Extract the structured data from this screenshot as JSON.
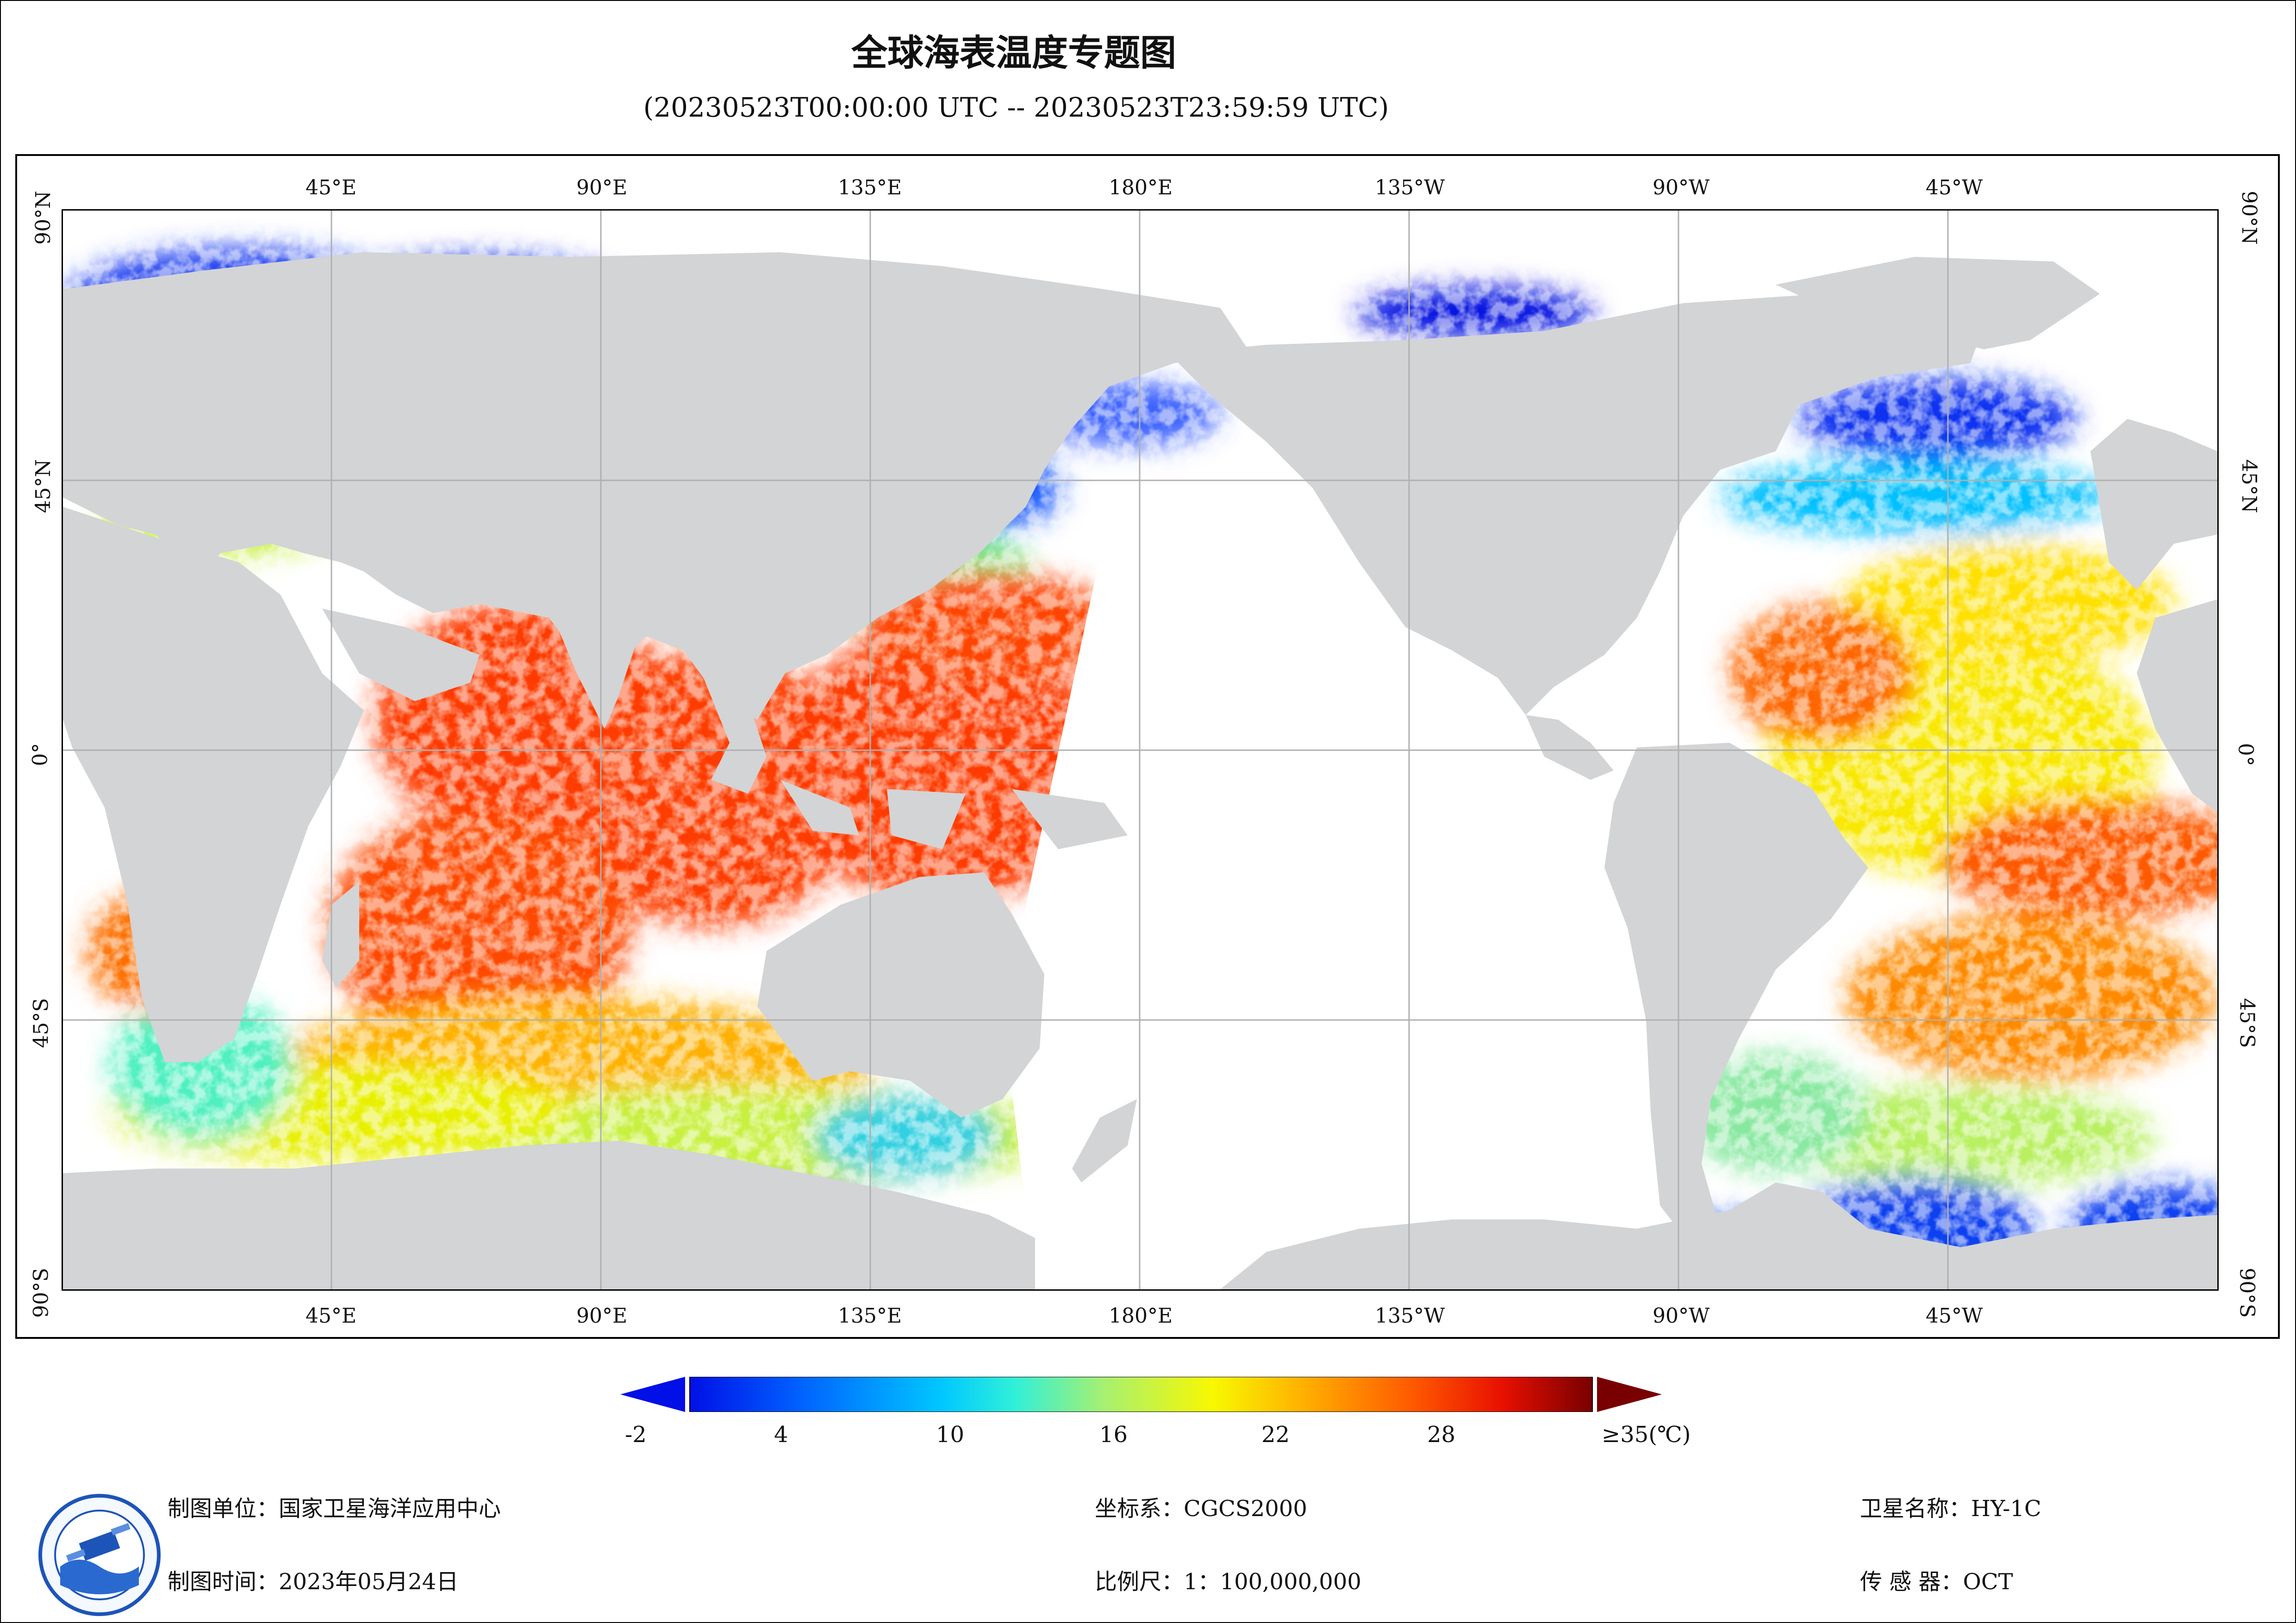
{
  "map": {
    "title": "全球海表温度专题图",
    "time_range": "(20230523T00:00:00 UTC -- 20230523T23:59:59 UTC)",
    "longitude_labels": [
      "45°E",
      "90°E",
      "135°E",
      "180°E",
      "135°W",
      "90°W",
      "45°W"
    ],
    "latitude_labels": [
      "90°N",
      "45°N",
      "0°",
      "45°S",
      "90°S"
    ],
    "colors": {
      "land": "#d3d4d6",
      "missing": "#ffffff",
      "grid": "#b0b0b0"
    }
  },
  "colorbar": {
    "ticks": [
      "-2",
      "4",
      "10",
      "16",
      "22",
      "28"
    ],
    "max_label": "≥35(℃)",
    "min_value": -2,
    "max_value": 35,
    "unit": "℃",
    "colors": [
      "#0010e6",
      "#0060ff",
      "#00c8ff",
      "#30f0d8",
      "#a8f070",
      "#f8f800",
      "#ffb000",
      "#ff5a00",
      "#e81000",
      "#780000"
    ]
  },
  "footer": {
    "producer_label": "制图单位：",
    "producer_value": "国家卫星海洋应用中心",
    "date_label": "制图时间：",
    "date_value": "2023年05月24日",
    "crs_label": "坐标系：",
    "crs_value": "CGCS2000",
    "scale_label": "比例尺：",
    "scale_value": "1：100,000,000",
    "satellite_label": "卫星名称：",
    "satellite_value": "HY-1C",
    "sensor_label": "传 感 器：",
    "sensor_value": "OCT"
  }
}
